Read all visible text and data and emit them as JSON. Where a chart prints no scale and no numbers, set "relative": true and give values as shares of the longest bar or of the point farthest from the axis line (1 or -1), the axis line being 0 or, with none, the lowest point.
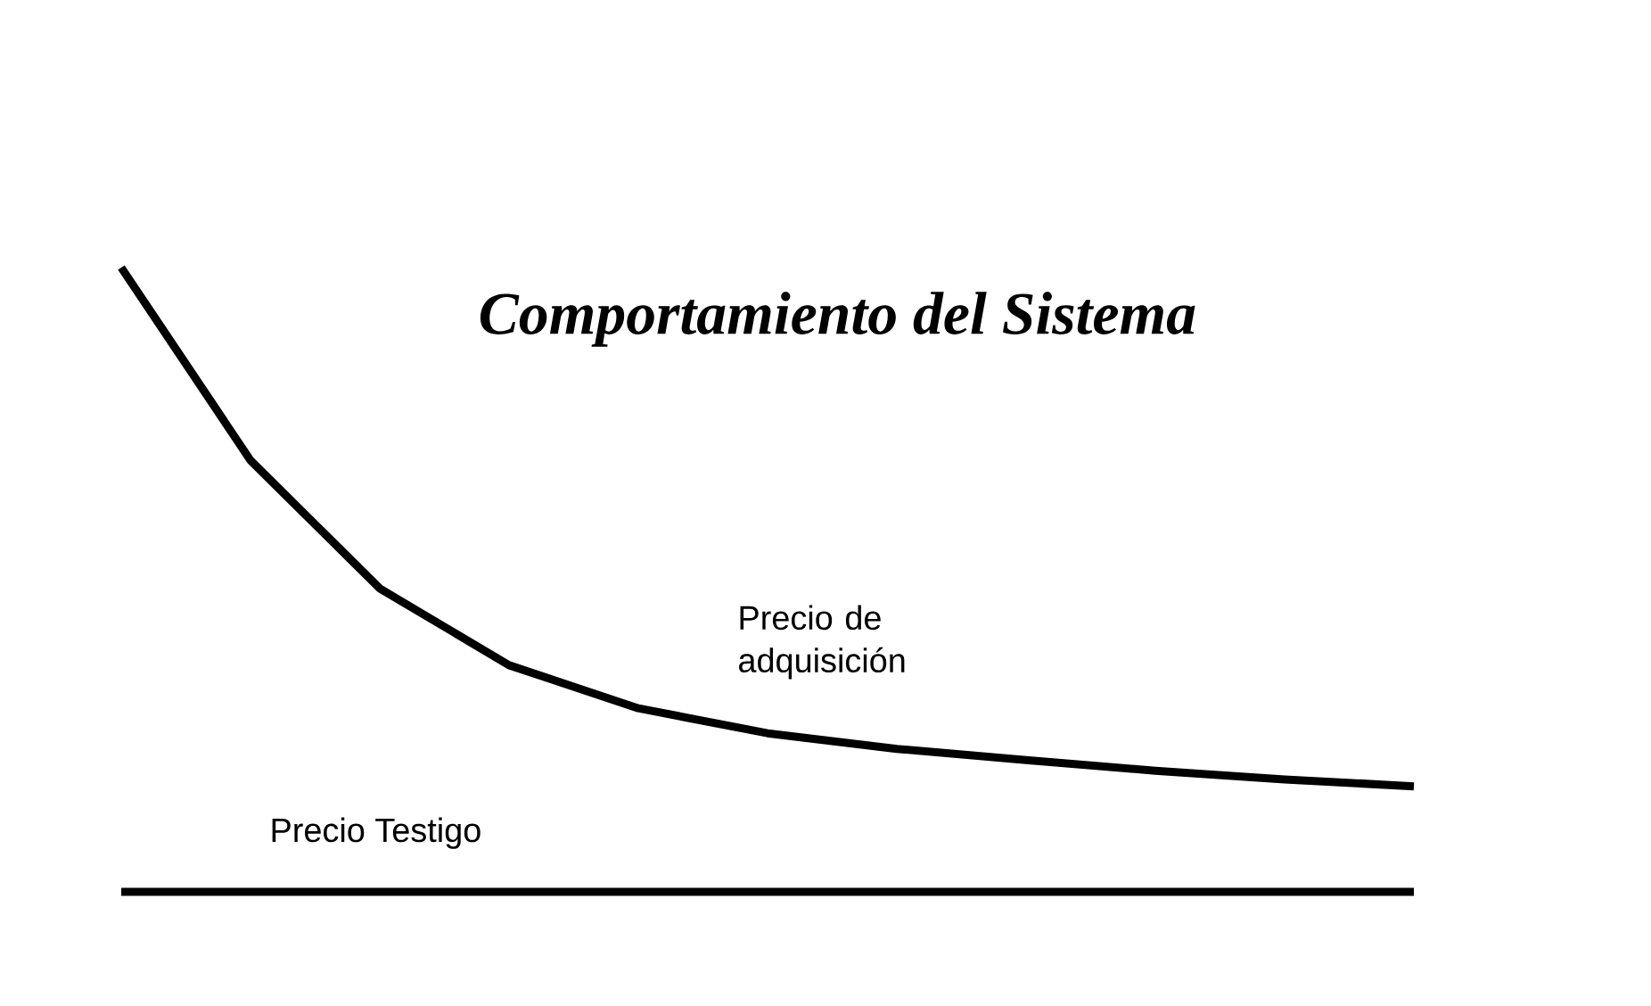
{
  "chart_data": {
    "type": "line",
    "title": "Comportamiento del Sistema",
    "relative": true,
    "categories": [
      null,
      null,
      null,
      null,
      null,
      null,
      null,
      null,
      null,
      null,
      null
    ],
    "series": [
      {
        "name": "Precio de adquisición",
        "color": "#000000",
        "values": [
          1,
          0.691,
          0.486,
          0.363,
          0.294,
          0.254,
          0.229,
          0.211,
          0.194,
          0.18,
          0.169
        ]
      },
      {
        "name": "Precio Testigo",
        "color": "#000000",
        "values": [
          0,
          0,
          0,
          0,
          0,
          0,
          0,
          0,
          0,
          0,
          0
        ]
      }
    ]
  }
}
